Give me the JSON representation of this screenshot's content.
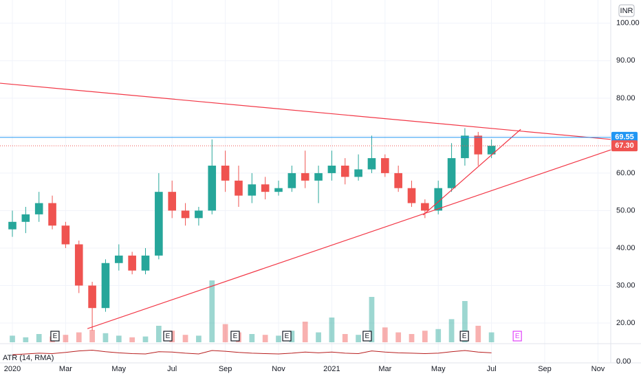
{
  "chart_data": {
    "type": "candlestick",
    "currency": "INR",
    "x": [
      0,
      0.5,
      1,
      1.5,
      2,
      2.5,
      3,
      3.5,
      4,
      4.5,
      5,
      5.5,
      6,
      6.5,
      7,
      7.5,
      8,
      8.5,
      9,
      9.5,
      10,
      10.5,
      11,
      11.5,
      12,
      12.5,
      13,
      13.5,
      14,
      14.5,
      15,
      15.5,
      16,
      16.5,
      17,
      17.5,
      18
    ],
    "open": [
      45,
      47,
      49,
      52,
      46,
      41,
      30,
      24,
      36,
      38,
      34,
      38,
      55,
      50,
      48,
      50,
      62,
      58,
      54,
      57,
      55,
      56,
      60,
      58,
      60,
      62,
      59,
      61,
      64,
      60,
      56,
      52,
      50,
      56,
      64,
      70,
      65
    ],
    "high": [
      50,
      51,
      55,
      54,
      47,
      42,
      31,
      37,
      41,
      39,
      40,
      60,
      58,
      52,
      51,
      69,
      66,
      62,
      60,
      59,
      58,
      62,
      66,
      62,
      66,
      64,
      65,
      70,
      65,
      62,
      58,
      53,
      58,
      68,
      72,
      71,
      69
    ],
    "low": [
      43,
      44,
      47,
      45,
      40,
      28,
      18,
      23,
      34,
      33,
      33,
      37,
      48,
      46,
      46,
      49,
      55,
      51,
      52,
      53,
      54,
      55,
      56,
      52,
      58,
      57,
      58,
      60,
      59,
      55,
      51,
      48,
      49,
      55,
      62,
      62,
      64
    ],
    "close": [
      47,
      49,
      52,
      46,
      41,
      30,
      24,
      36,
      38,
      34,
      38,
      55,
      50,
      48,
      50,
      62,
      58,
      54,
      57,
      55,
      56,
      60,
      58,
      60,
      62,
      59,
      61,
      64,
      60,
      56,
      52,
      50,
      56,
      64,
      70,
      65,
      67.3
    ],
    "volume": [
      8,
      6,
      10,
      7,
      9,
      12,
      15,
      11,
      8,
      6,
      7,
      20,
      14,
      9,
      8,
      75,
      22,
      12,
      10,
      9,
      8,
      14,
      25,
      12,
      30,
      10,
      9,
      55,
      18,
      12,
      10,
      14,
      16,
      28,
      50,
      20,
      12
    ],
    "up_color": "#26a69a",
    "down_color": "#ef5350",
    "xlim": [
      -0.465,
      22.48
    ],
    "ylim": [
      14.5,
      106.2
    ],
    "volume_ylim": [
      0,
      100
    ],
    "xticks": [
      {
        "value": 0,
        "label": "2020"
      },
      {
        "value": 2,
        "label": "Mar"
      },
      {
        "value": 4,
        "label": "May"
      },
      {
        "value": 6,
        "label": "Jul"
      },
      {
        "value": 8,
        "label": "Sep"
      },
      {
        "value": 10,
        "label": "Nov"
      },
      {
        "value": 12,
        "label": "2021"
      },
      {
        "value": 14,
        "label": "Mar"
      },
      {
        "value": 16,
        "label": "May"
      },
      {
        "value": 18,
        "label": "Jul"
      },
      {
        "value": 20,
        "label": "Sep"
      },
      {
        "value": 22,
        "label": "Nov"
      }
    ],
    "yticks": [
      {
        "value": 100,
        "label": "100.00"
      },
      {
        "value": 90,
        "label": "90.00"
      },
      {
        "value": 80,
        "label": "80.00"
      },
      {
        "value": 70,
        "label": "70.00"
      },
      {
        "value": 60,
        "label": "60.00"
      },
      {
        "value": 50,
        "label": "50.00"
      },
      {
        "value": 40,
        "label": "40.00"
      },
      {
        "value": 30,
        "label": "30.00"
      },
      {
        "value": 20,
        "label": "20.00"
      }
    ],
    "grid": true,
    "price_lines": [
      {
        "value": 69.55,
        "label": "69.55",
        "color": "#2196f3",
        "style": "solid"
      },
      {
        "value": 67.3,
        "label": "67.30",
        "color": "#ef5350",
        "style": "dotted"
      }
    ],
    "trend_lines": [
      {
        "points": [
          [
            -0.465,
            84.0
          ],
          [
            22.48,
            69.0
          ]
        ],
        "color": "#f23645"
      },
      {
        "points": [
          [
            2.82,
            18.5
          ],
          [
            22.48,
            66.2
          ]
        ],
        "color": "#f23645"
      },
      {
        "points": [
          [
            15.43,
            48.8
          ],
          [
            19.1,
            71.7
          ]
        ],
        "color": "#f23645"
      }
    ],
    "events": [
      {
        "x": 1.6,
        "label": "E",
        "color": "#131722"
      },
      {
        "x": 5.84,
        "label": "E",
        "color": "#131722"
      },
      {
        "x": 8.37,
        "label": "E",
        "color": "#131722"
      },
      {
        "x": 10.31,
        "label": "E",
        "color": "#131722"
      },
      {
        "x": 13.33,
        "label": "E",
        "color": "#131722"
      },
      {
        "x": 16.98,
        "label": "E",
        "color": "#131722"
      },
      {
        "x": 18.97,
        "label": "E",
        "color": "#e040fb"
      }
    ],
    "atr": {
      "label": "ATR (14, RMA)",
      "color": "#b71c1c",
      "values": [
        1.8,
        2,
        2.2,
        2.1,
        2.4,
        2.8,
        3,
        2.6,
        2.3,
        2.1,
        2,
        2.6,
        2.5,
        2.2,
        2,
        2.9,
        2.7,
        2.4,
        2.2,
        2.1,
        2,
        2.2,
        2.5,
        2.3,
        2.5,
        2.2,
        2.1,
        2.8,
        2.5,
        2.3,
        2.2,
        2.1,
        2.2,
        2.6,
        2.9,
        2.5,
        2.3
      ],
      "ylim": [
        0,
        4
      ],
      "ticks": [
        {
          "value": 0,
          "label": "0.00"
        }
      ]
    }
  }
}
